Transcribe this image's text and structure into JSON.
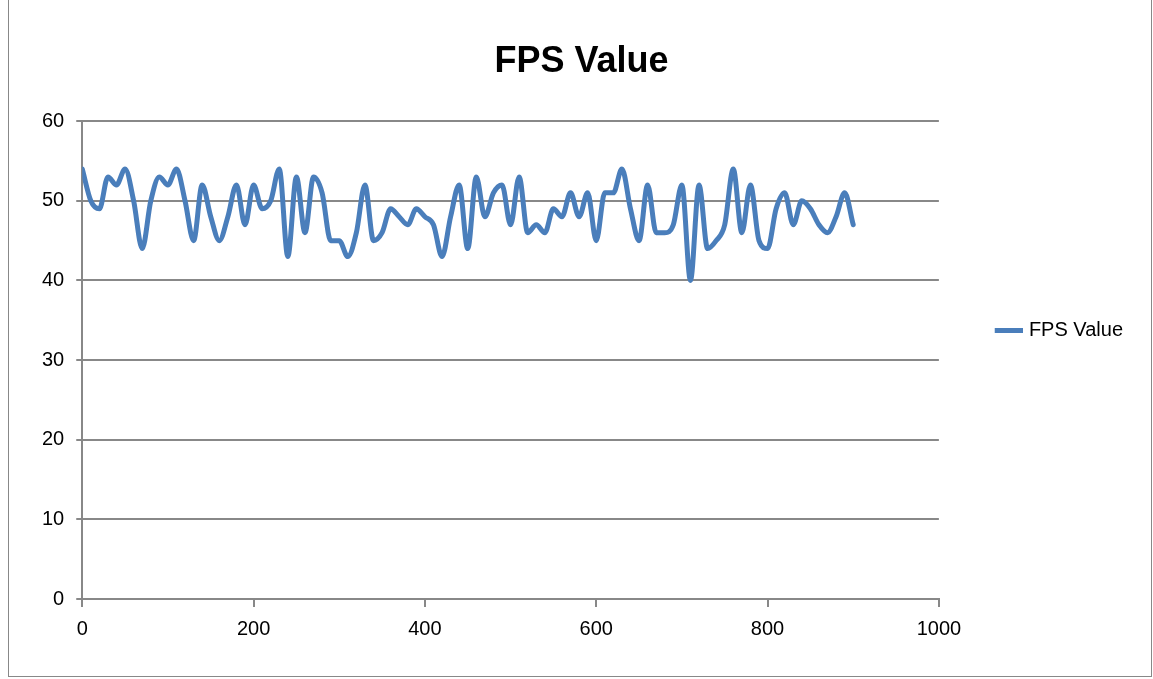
{
  "chart_data": {
    "type": "line",
    "title": "FPS Value",
    "x": [
      0,
      10,
      20,
      30,
      40,
      50,
      60,
      70,
      80,
      90,
      100,
      110,
      120,
      130,
      140,
      150,
      160,
      170,
      180,
      190,
      200,
      210,
      220,
      230,
      240,
      250,
      260,
      270,
      280,
      290,
      300,
      310,
      320,
      330,
      340,
      350,
      360,
      370,
      380,
      390,
      400,
      410,
      420,
      430,
      440,
      450,
      460,
      470,
      480,
      490,
      500,
      510,
      520,
      530,
      540,
      550,
      560,
      570,
      580,
      590,
      600,
      610,
      620,
      630,
      640,
      650,
      660,
      670,
      680,
      690,
      700,
      710,
      720,
      730,
      740,
      750,
      760,
      770,
      780,
      790,
      800,
      810,
      820,
      830,
      840,
      850,
      860,
      870,
      880,
      890,
      900
    ],
    "series": [
      {
        "name": "FPS Value",
        "color": "#4a7ebb",
        "values": [
          54,
          50,
          49,
          53,
          52,
          54,
          50,
          44,
          50,
          53,
          52,
          54,
          50,
          45,
          52,
          48,
          45,
          48,
          52,
          47,
          52,
          49,
          50,
          54,
          43,
          53,
          46,
          53,
          51,
          45,
          45,
          43,
          46,
          52,
          45,
          46,
          49,
          48,
          47,
          49,
          48,
          47,
          43,
          48,
          52,
          44,
          53,
          48,
          51,
          52,
          47,
          53,
          46,
          47,
          46,
          49,
          48,
          51,
          48,
          51,
          45,
          51,
          51,
          54,
          49,
          45,
          52,
          46,
          46,
          47,
          52,
          40,
          52,
          44,
          45,
          47,
          54,
          46,
          52,
          45,
          44,
          49,
          51,
          47,
          50,
          49,
          47,
          46,
          48,
          51,
          47
        ]
      }
    ],
    "xlim": [
      0,
      1000
    ],
    "xticks": [
      0,
      200,
      400,
      600,
      800,
      1000
    ],
    "ylim": [
      0,
      60
    ],
    "yticks": [
      0,
      10,
      20,
      30,
      40,
      50,
      60
    ],
    "grid": "y",
    "legend": "right",
    "marker": "none",
    "line_style": "solid"
  }
}
